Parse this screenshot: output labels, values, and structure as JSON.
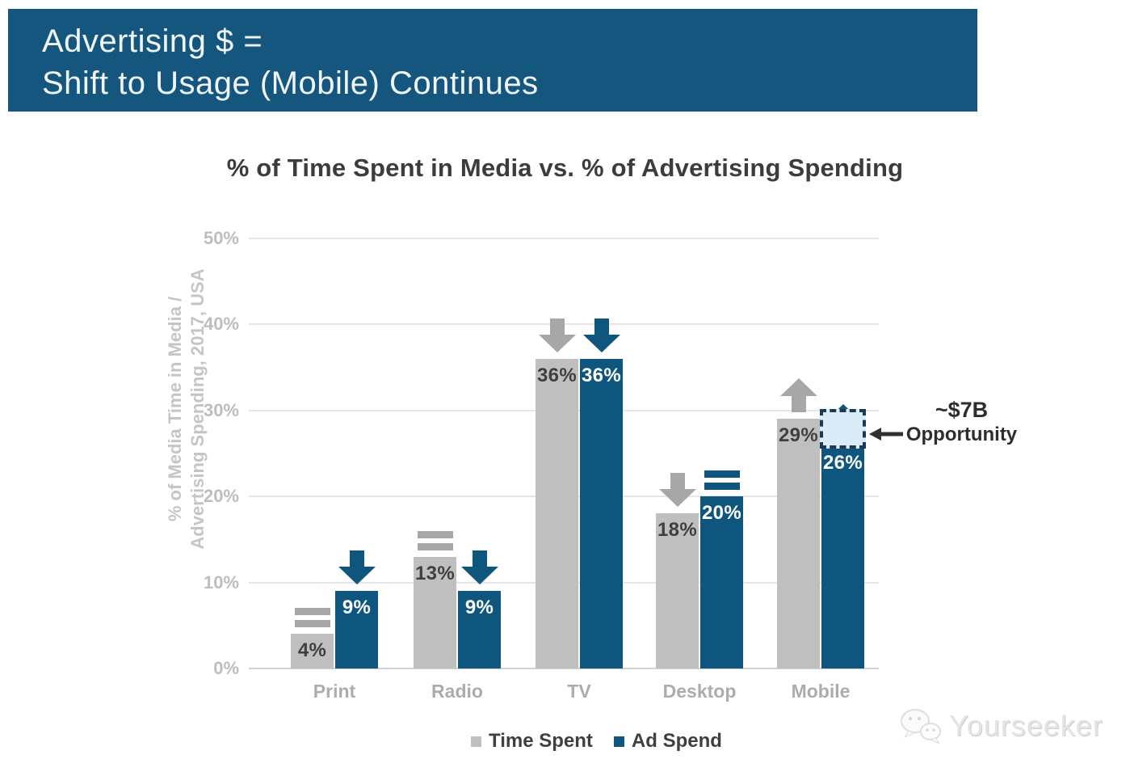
{
  "header": {
    "title_line1": "Advertising $ =",
    "title_line2": "Shift to Usage (Mobile) Continues",
    "bg_color": "#15567E",
    "text_color": "#EFF5F9"
  },
  "chart_data": {
    "type": "bar",
    "title": "% of Time Spent in Media vs. % of Advertising Spending",
    "ylabel_line1": "% of Media Time in Media /",
    "ylabel_line2": "Advertising Spending, 2017, USA",
    "categories": [
      "Print",
      "Radio",
      "TV",
      "Desktop",
      "Mobile"
    ],
    "series": [
      {
        "name": "Time Spent",
        "color": "#BFBFBF",
        "label_color": "#3F3F3F",
        "indicator_color": "#A7A7A7",
        "values": [
          4,
          13,
          36,
          18,
          29
        ],
        "value_labels": [
          "4%",
          "13%",
          "36%",
          "18%",
          "29%"
        ],
        "trend_indicators": [
          "equal",
          "equal",
          "down",
          "down",
          "up"
        ]
      },
      {
        "name": "Ad Spend",
        "color": "#0F567F",
        "label_color": "#FFFFFF",
        "indicator_color": "#0F567F",
        "values": [
          9,
          9,
          36,
          20,
          26
        ],
        "value_labels": [
          "9%",
          "9%",
          "36%",
          "20%",
          "26%"
        ],
        "trend_indicators": [
          "down",
          "down",
          "down",
          "equal",
          "up"
        ]
      }
    ],
    "ylim": [
      0,
      50
    ],
    "ytick_values": [
      0,
      10,
      20,
      30,
      40,
      50
    ],
    "ytick_labels": [
      "0%",
      "10%",
      "20%",
      "30%",
      "40%",
      "50%"
    ],
    "grid": true,
    "legend_position": "bottom",
    "annotation": {
      "text_line1": "~$7B",
      "text_line2": "Opportunity",
      "target_category": "Mobile",
      "target_series": "Ad Spend",
      "box_value_from": 26,
      "box_value_to": 30.2,
      "box_fill": "#D9ECF7",
      "box_border": "#1C3A54"
    }
  },
  "watermark": {
    "text": "Yourseeker",
    "icon": "chat-bubbles-logo-icon"
  }
}
